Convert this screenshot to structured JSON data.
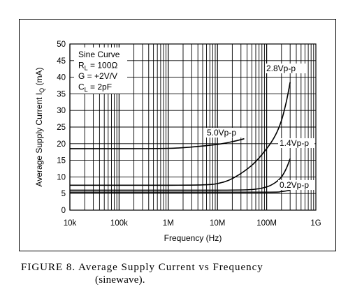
{
  "chart_data": {
    "type": "line",
    "xscale": "log",
    "xlim": [
      10000,
      1000000000
    ],
    "ylim": [
      0,
      50
    ],
    "xticks": [
      "10k",
      "100k",
      "1M",
      "10M",
      "100M",
      "1G"
    ],
    "yticks": [
      "0",
      "5",
      "10",
      "15",
      "20",
      "25",
      "30",
      "35",
      "40",
      "45",
      "50"
    ],
    "xlabel": "Frequency (Hz)",
    "ylabel_main": "Average Supply Current I",
    "ylabel_sub": "Q",
    "ylabel_unit": " (mA)",
    "grid": true,
    "conditions": [
      {
        "main": "Sine Curve",
        "sub": "",
        "rest": ""
      },
      {
        "main": "R",
        "sub": "L",
        "rest": " = 100Ω"
      },
      {
        "main": "G = +2V/V",
        "sub": "",
        "rest": ""
      },
      {
        "main": "C",
        "sub": "L",
        "rest": " = 2pF"
      }
    ],
    "series": [
      {
        "name": "5.0Vp-p",
        "x": [
          10000,
          100000,
          1000000,
          3000000,
          10000000,
          20000000,
          35000000
        ],
        "y": [
          18.5,
          18.5,
          18.6,
          19.0,
          19.8,
          20.6,
          21.5
        ]
      },
      {
        "name": "2.8Vp-p",
        "x": [
          10000,
          1000000,
          5000000,
          10000000,
          20000000,
          50000000,
          100000000,
          150000000,
          200000000,
          250000000,
          300000000
        ],
        "y": [
          7.5,
          7.5,
          7.6,
          8.0,
          9.5,
          13.5,
          18.5,
          22.5,
          27.0,
          32.5,
          38.5
        ]
      },
      {
        "name": "1.4Vp-p",
        "x": [
          10000,
          1000000,
          10000000,
          50000000,
          100000000,
          150000000,
          200000000,
          250000000,
          300000000
        ],
        "y": [
          6.0,
          6.0,
          6.0,
          6.2,
          7.0,
          8.3,
          10.0,
          12.5,
          15.5
        ]
      },
      {
        "name": "0.2Vp-p",
        "x": [
          10000,
          1000000,
          100000000,
          200000000,
          300000000
        ],
        "y": [
          5.4,
          5.4,
          5.4,
          5.6,
          6.0
        ]
      }
    ]
  },
  "caption": {
    "line1": "FIGURE 8. Average Supply Current vs Frequency",
    "line2": "(sinewave)."
  }
}
